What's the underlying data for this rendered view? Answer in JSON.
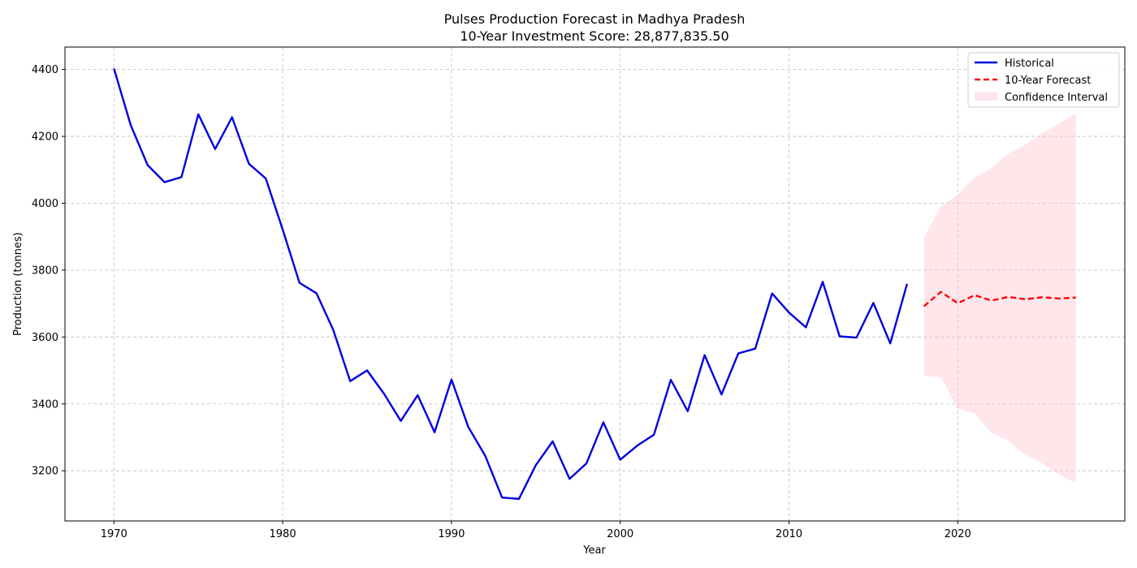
{
  "chart_data": {
    "type": "line",
    "title": "Pulses Production Forecast in Madhya Pradesh",
    "subtitle": "10-Year Investment Score: 28,877,835.50",
    "xlabel": "Year",
    "ylabel": "Production (tonnes)",
    "xlim": [
      1967.1,
      2029.9
    ],
    "ylim": [
      3050,
      4467
    ],
    "xticks": [
      1970,
      1980,
      1990,
      2000,
      2010,
      2020
    ],
    "yticks": [
      3200,
      3400,
      3600,
      3800,
      4000,
      4200,
      4400
    ],
    "grid": true,
    "legend_position": "top-right",
    "legend": [
      "Historical",
      "10-Year Forecast",
      "Confidence Interval"
    ],
    "colors": {
      "historical": "#0000e0",
      "forecast": "#ff0000",
      "confidence": "#ffc0cb"
    },
    "series": [
      {
        "name": "Historical",
        "style": "solid",
        "x": [
          1970,
          1971,
          1972,
          1973,
          1974,
          1975,
          1976,
          1977,
          1978,
          1979,
          1980,
          1981,
          1982,
          1983,
          1984,
          1985,
          1986,
          1987,
          1988,
          1989,
          1990,
          1991,
          1992,
          1993,
          1994,
          1995,
          1996,
          1997,
          1998,
          1999,
          2000,
          2001,
          2002,
          2003,
          2004,
          2005,
          2006,
          2007,
          2008,
          2009,
          2010,
          2011,
          2012,
          2013,
          2014,
          2015,
          2016,
          2017
        ],
        "values": [
          4403,
          4233,
          4114,
          4063,
          4078,
          4266,
          4162,
          4257,
          4118,
          4074,
          3921,
          3762,
          3731,
          3621,
          3468,
          3500,
          3431,
          3349,
          3426,
          3315,
          3473,
          3331,
          3245,
          3120,
          3116,
          3217,
          3288,
          3176,
          3222,
          3345,
          3233,
          3275,
          3308,
          3472,
          3378,
          3546,
          3428,
          3551,
          3565,
          3730,
          3673,
          3629,
          3765,
          3602,
          3598,
          3702,
          3581,
          3759
        ]
      },
      {
        "name": "10-Year Forecast",
        "style": "dashed",
        "x": [
          2018,
          2019,
          2020,
          2021,
          2022,
          2023,
          2024,
          2025,
          2026,
          2027
        ],
        "values": [
          3692,
          3735,
          3701,
          3725,
          3709,
          3720,
          3713,
          3719,
          3715,
          3718
        ]
      }
    ],
    "confidence_interval": {
      "name": "Confidence Interval",
      "x": [
        2018,
        2019,
        2020,
        2021,
        2022,
        2023,
        2024,
        2025,
        2026,
        2027
      ],
      "upper": [
        3898,
        3990,
        4025,
        4078,
        4105,
        4148,
        4175,
        4210,
        4238,
        4268
      ],
      "lower": [
        3484,
        3480,
        3385,
        3372,
        3313,
        3290,
        3248,
        3222,
        3188,
        3163
      ]
    }
  }
}
